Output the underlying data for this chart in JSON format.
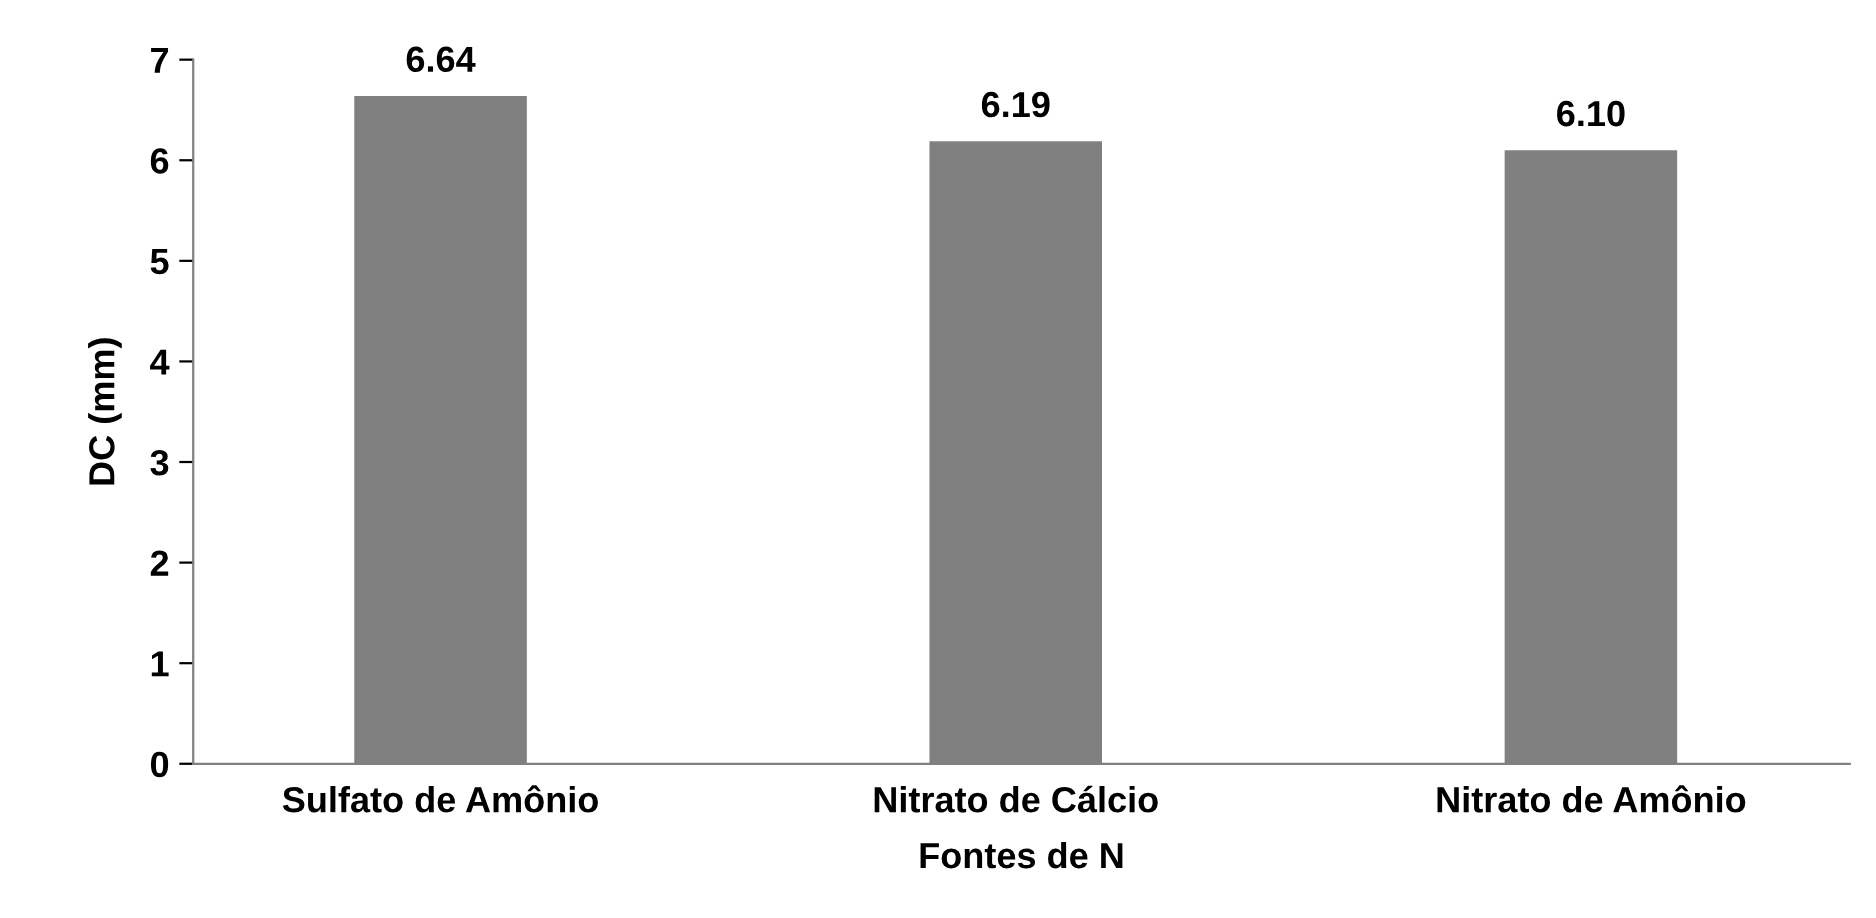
{
  "chart_data": {
    "type": "bar",
    "categories": [
      "Sulfato de Amônio",
      "Nitrato de Cálcio",
      "Nitrato de Amônio"
    ],
    "values": [
      6.64,
      6.19,
      6.1
    ],
    "value_labels": [
      "6.64",
      "6.19",
      "6.10"
    ],
    "color": "#808080",
    "ylim": [
      0,
      7
    ],
    "yticks": [
      0,
      1,
      2,
      3,
      4,
      5,
      6,
      7
    ],
    "xlabel": "Fontes de N",
    "ylabel": "DC (mm)"
  }
}
